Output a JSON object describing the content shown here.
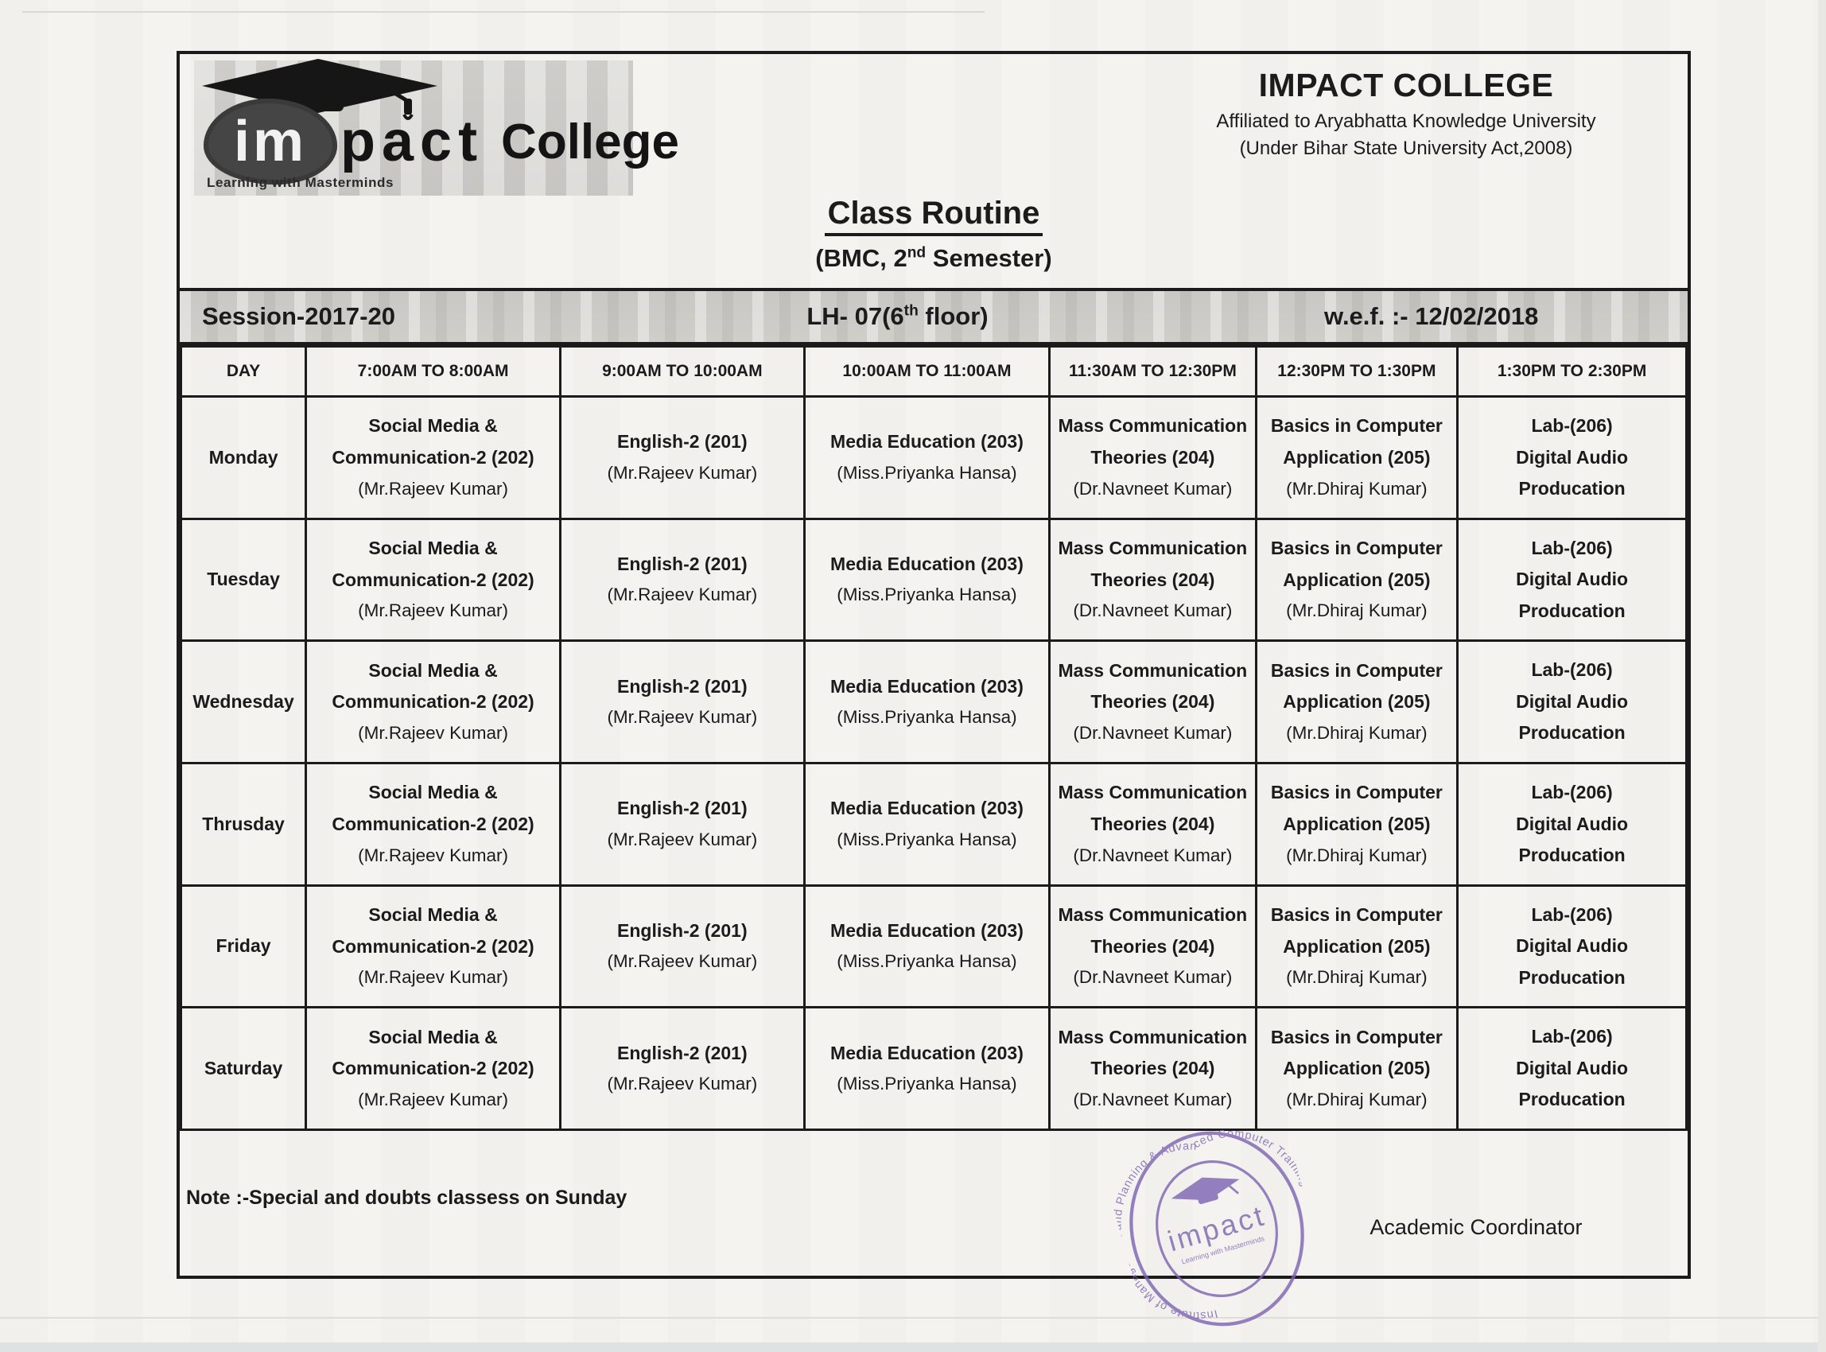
{
  "logo": {
    "im": "im",
    "pact": "pact",
    "college": "College",
    "tagline": "Learning with Masterminds"
  },
  "header": {
    "college_name": "IMPACT COLLEGE",
    "affiliation": "Affiliated to Aryabhatta Knowledge University",
    "act_line": "(Under Bihar State University Act,2008)"
  },
  "title": {
    "main": "Class Routine",
    "sub_prefix": "(BMC, 2",
    "sub_sup": "nd",
    "sub_suffix": " Semester)"
  },
  "session_bar": {
    "session": "Session-2017-20",
    "hall_prefix": "LH- 07(6",
    "hall_sup": "th",
    "hall_suffix": " floor)",
    "wef": "w.e.f. :- 12/02/2018"
  },
  "table": {
    "headers": [
      "DAY",
      "7:00AM TO 8:00AM",
      "9:00AM TO 10:00AM",
      "10:00AM TO 11:00AM",
      "11:30AM TO 12:30PM",
      "12:30PM TO 1:30PM",
      "1:30PM TO 2:30PM"
    ],
    "col_widths_pct": [
      8.3,
      16.9,
      16.2,
      16.3,
      13.7,
      13.4,
      15.2
    ],
    "days": [
      "Monday",
      "Tuesday",
      "Wednesday",
      "Thrusday",
      "Friday",
      "Saturday"
    ],
    "periods": [
      {
        "title_lines": [
          "Social Media &",
          "Communication-2 (202)"
        ],
        "teacher": "(Mr.Rajeev Kumar)"
      },
      {
        "title_lines": [
          "English-2 (201)"
        ],
        "teacher": "(Mr.Rajeev Kumar)"
      },
      {
        "title_lines": [
          "Media Education (203)"
        ],
        "teacher": "(Miss.Priyanka Hansa)"
      },
      {
        "title_lines": [
          "Mass Communication",
          "Theories (204)"
        ],
        "teacher": "(Dr.Navneet Kumar)"
      },
      {
        "title_lines": [
          "Basics in Computer",
          "Application (205)"
        ],
        "teacher": "(Mr.Dhiraj Kumar)"
      },
      {
        "title_lines": [
          "Lab-(206)",
          "Digital Audio",
          "Producation"
        ],
        "teacher": ""
      }
    ]
  },
  "footer": {
    "note": "Note :-Special and doubts classess on Sunday",
    "signature": "Academic Coordinator"
  },
  "stamp": {
    "ring_text": "Institute of Management and Planning & Advanced Computer Training ★",
    "brand": "impact",
    "tagline": "Learning with Masterminds"
  },
  "colors": {
    "ink": "#1b1b1b",
    "stamp_purple": "#7d63b2",
    "bar_gray": "#c9c8c4",
    "paper": "#f4f3f0"
  }
}
